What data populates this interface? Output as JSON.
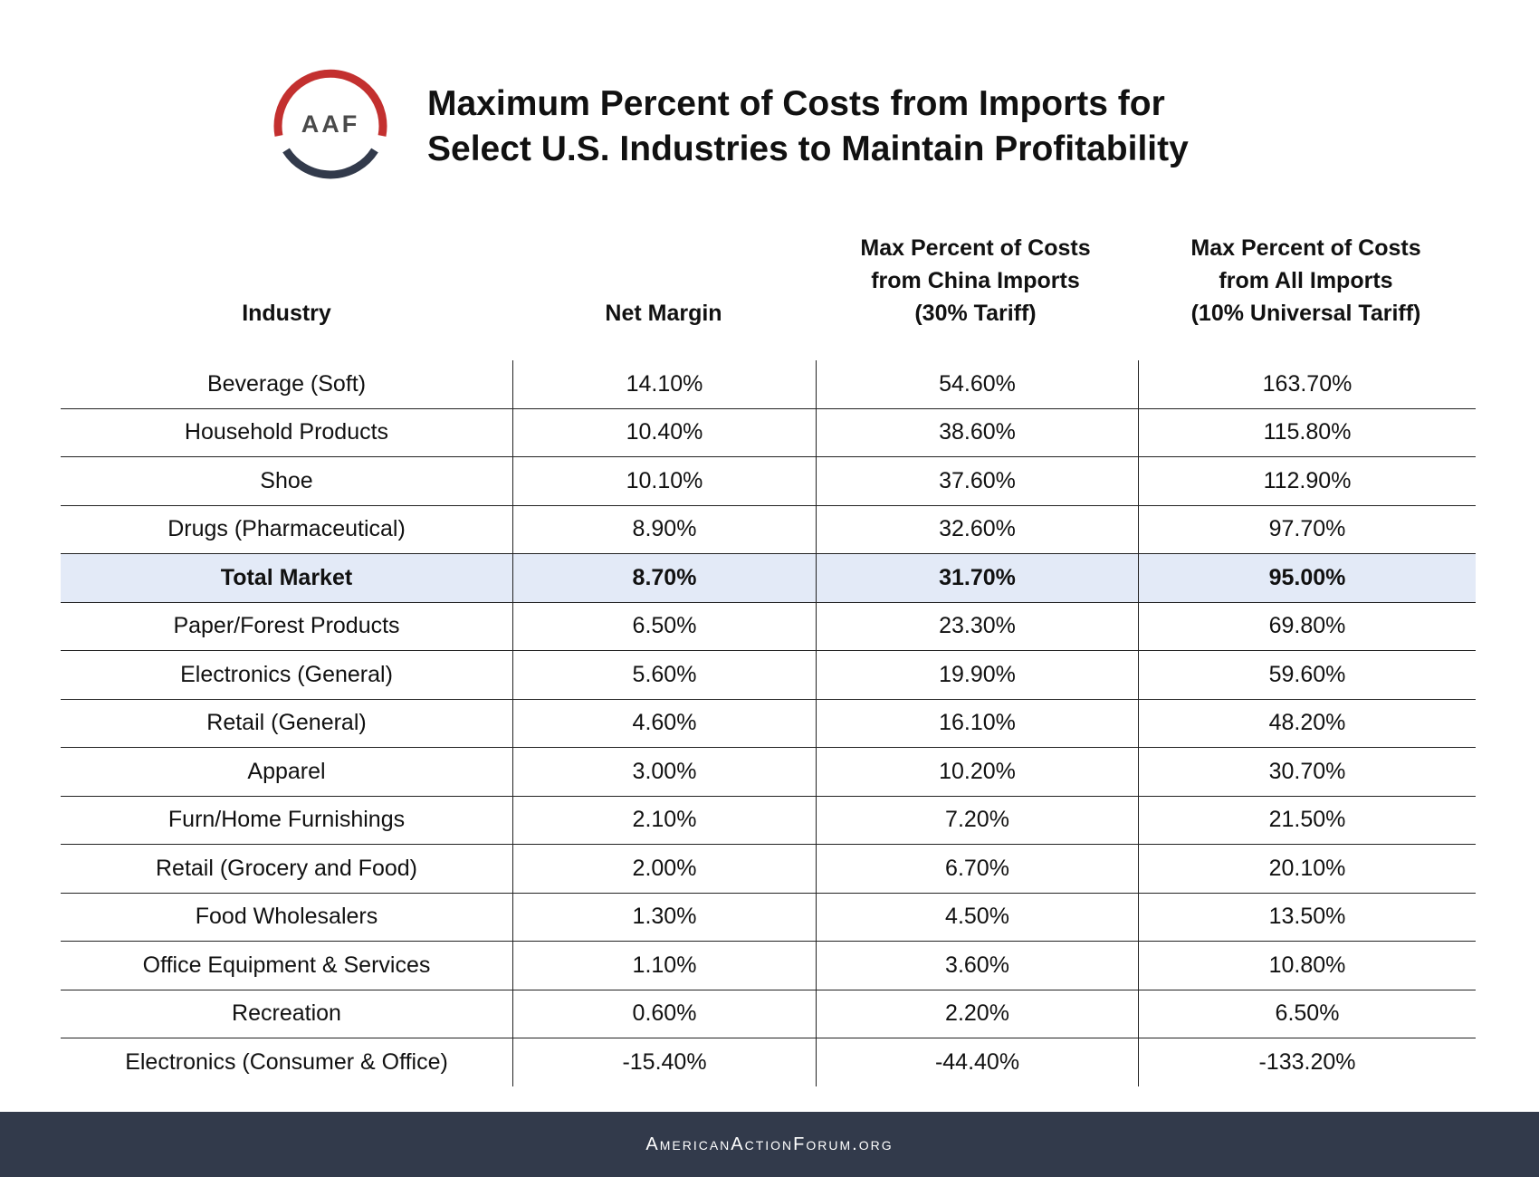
{
  "logo": {
    "text": "AAF",
    "colors": {
      "top": "#c3302f",
      "bottom": "#323a4b",
      "text": "#4a4a4a"
    }
  },
  "title": [
    "Maximum Percent of Costs from Imports for",
    "Select U.S. Industries to Maintain Profitability"
  ],
  "headers": [
    [
      "Industry"
    ],
    [
      "Net Margin"
    ],
    [
      "Max Percent of Costs",
      "from China Imports",
      "(30% Tariff)"
    ],
    [
      "Max Percent of Costs",
      "from All Imports",
      "(10% Universal Tariff)"
    ]
  ],
  "rows": [
    [
      "Beverage (Soft)",
      "14.10%",
      "54.60%",
      "163.70%"
    ],
    [
      "Household Products",
      "10.40%",
      "38.60%",
      "115.80%"
    ],
    [
      "Shoe",
      "10.10%",
      "37.60%",
      "112.90%"
    ],
    [
      "Drugs (Pharmaceutical)",
      "8.90%",
      "32.60%",
      "97.70%"
    ],
    [
      "Total Market",
      "8.70%",
      "31.70%",
      "95.00%"
    ],
    [
      "Paper/Forest Products",
      "6.50%",
      "23.30%",
      "69.80%"
    ],
    [
      "Electronics (General)",
      "5.60%",
      "19.90%",
      "59.60%"
    ],
    [
      "Retail (General)",
      "4.60%",
      "16.10%",
      "48.20%"
    ],
    [
      "Apparel",
      "3.00%",
      "10.20%",
      "30.70%"
    ],
    [
      "Furn/Home Furnishings",
      "2.10%",
      "7.20%",
      "21.50%"
    ],
    [
      "Retail (Grocery and Food)",
      "2.00%",
      "6.70%",
      "20.10%"
    ],
    [
      "Food Wholesalers",
      "1.30%",
      "4.50%",
      "13.50%"
    ],
    [
      "Office Equipment & Services",
      "1.10%",
      "3.60%",
      "10.80%"
    ],
    [
      "Recreation",
      "0.60%",
      "2.20%",
      "6.50%"
    ],
    [
      "Electronics (Consumer & Office)",
      "-15.40%",
      "-44.40%",
      "-133.20%"
    ]
  ],
  "highlight_row": "Total Market",
  "highlight_color": "#e3eaf7",
  "footer": {
    "text": "AmericanActionForum.org",
    "bg": "#323a4b"
  }
}
